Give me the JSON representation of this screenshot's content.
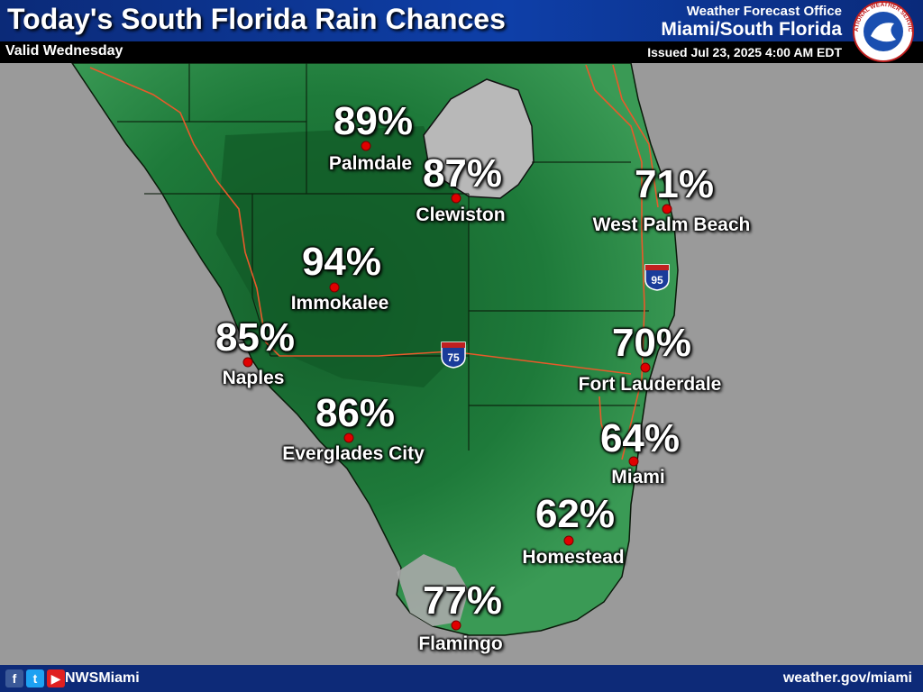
{
  "header": {
    "title": "Today's South Florida Rain Chances",
    "valid": "Valid Wednesday",
    "office_line1": "Weather Forecast Office",
    "office_line2": "Miami/South Florida",
    "issued": "Issued Jul 23, 2025 4:00 AM EDT",
    "logo_ring_text": "NATIONAL WEATHER SERVICE"
  },
  "colors": {
    "water": "#9a9a9a",
    "land_light": "#2f8f4a",
    "land_dark": "#145f2b",
    "lake": "#b8b8b8",
    "county_lines": "#0a1a0a",
    "roads": "#e85a2a",
    "header_bg": "#0d3a9a",
    "footer_bg": "#0d2a78",
    "point_marker": "#e00000"
  },
  "highways": {
    "i75": "75",
    "i95": "95",
    "shield_top": "INTERSTATE"
  },
  "locations": [
    {
      "name": "Palmdale",
      "chance": "89%",
      "chance_value": 89
    },
    {
      "name": "Clewiston",
      "chance": "87%",
      "chance_value": 87
    },
    {
      "name": "West Palm Beach",
      "chance": "71%",
      "chance_value": 71
    },
    {
      "name": "Immokalee",
      "chance": "94%",
      "chance_value": 94
    },
    {
      "name": "Naples",
      "chance": "85%",
      "chance_value": 85
    },
    {
      "name": "Fort Lauderdale",
      "chance": "70%",
      "chance_value": 70
    },
    {
      "name": "Everglades City",
      "chance": "86%",
      "chance_value": 86
    },
    {
      "name": "Miami",
      "chance": "64%",
      "chance_value": 64
    },
    {
      "name": "Homestead",
      "chance": "62%",
      "chance_value": 62
    },
    {
      "name": "Flamingo",
      "chance": "77%",
      "chance_value": 77
    }
  ],
  "footer": {
    "handle": "NWSMiami",
    "website": "weather.gov/miami",
    "facebook_glyph": "f",
    "twitter_glyph": "t",
    "youtube_glyph": "▶"
  }
}
